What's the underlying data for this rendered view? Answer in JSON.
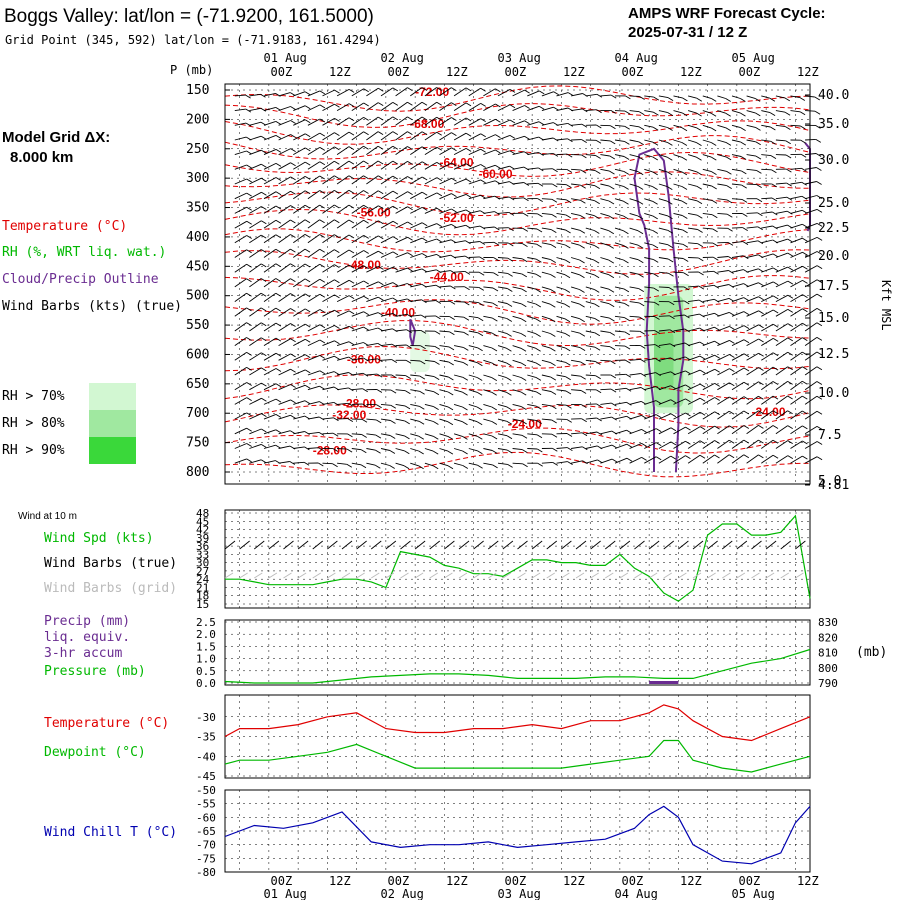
{
  "header": {
    "title": "Boggs Valley:  lat/lon = (-71.9200, 161.5000)",
    "subtitle": "Grid Point (345, 592) lat/lon = (-71.9183, 161.4294)",
    "cycle_line1": "AMPS WRF Forecast Cycle:",
    "cycle_line2": "2025-07-31 / 12  Z"
  },
  "legend": {
    "grid_label_1": "Model Grid ΔX:",
    "grid_label_2": "8.000 km",
    "temperature": "Temperature (°C)",
    "rh": "RH (%, WRT liq. wat.)",
    "cloud": "Cloud/Precip Outline",
    "wind": "Wind Barbs (kts) (true)",
    "rh70": "RH > 70%",
    "rh80": "RH > 80%",
    "rh90": "RH > 90%",
    "rh70_color": "#d2f7d2",
    "rh80_color": "#a0e8a0",
    "rh90_color": "#3ad83a"
  },
  "panel_labels": {
    "wind10": "Wind at 10 m",
    "wind_spd": "Wind Spd (kts)",
    "barbs_true": "Wind Barbs (true)",
    "barbs_grid": "Wind Barbs (grid)",
    "precip_1": "Precip (mm)",
    "precip_2": "liq. equiv.",
    "precip_3": "3-hr accum",
    "pressure": "Pressure (mb)",
    "pressure_unit": "(mb)",
    "temp": "Temperature (°C)",
    "dewpoint": "Dewpoint (°C)",
    "windchill": "Wind Chill T (°C)",
    "p_axis_label": "P (mb)",
    "kft_label": "Kft MSL"
  },
  "colors": {
    "temperature": "#e00000",
    "rh_green": "#00b800",
    "cloud": "#6a2c91",
    "wind": "#000000",
    "grid_barbs": "#bbbbbb",
    "windchill": "#0000b0",
    "precip": "#6a2c91"
  },
  "chart_data": [
    {
      "type": "line",
      "panel": "time-height cross section",
      "time_ticks": [
        "00Z",
        "12Z",
        "00Z",
        "12Z",
        "00Z",
        "12Z",
        "00Z",
        "12Z",
        "00Z",
        "12Z"
      ],
      "day_ticks": [
        "01 Aug",
        "02 Aug",
        "03 Aug",
        "04 Aug",
        "05 Aug"
      ],
      "y_ticks_mb": [
        150,
        200,
        250,
        300,
        350,
        400,
        450,
        500,
        550,
        600,
        650,
        700,
        750,
        800
      ],
      "y_right_ticks_kft": [
        "40.0",
        "35.0",
        "30.0",
        "25.0",
        "22.5",
        "20.0",
        "17.5",
        "15.0",
        "12.5",
        "10.0",
        "7.5",
        "5.0",
        "4.81"
      ],
      "y_right_kft_values": [
        40.0,
        35.0,
        30.0,
        25.0,
        22.5,
        20.0,
        17.5,
        15.0,
        12.5,
        10.0,
        7.5,
        5.0,
        4.81
      ],
      "temperature_contour_labels": [
        {
          "label": "-72.00",
          "hour": 15,
          "p": 160
        },
        {
          "label": "-68.00",
          "hour": 14,
          "p": 215
        },
        {
          "label": "-64.00",
          "hour": 20,
          "p": 280
        },
        {
          "label": "-60.00",
          "hour": 28,
          "p": 300
        },
        {
          "label": "-56.00",
          "hour": 3,
          "p": 365
        },
        {
          "label": "-52.00",
          "hour": 20,
          "p": 375
        },
        {
          "label": "-48.00",
          "hour": 1,
          "p": 455
        },
        {
          "label": "-44.00",
          "hour": 18,
          "p": 475
        },
        {
          "label": "-40.00",
          "hour": 8,
          "p": 535
        },
        {
          "label": "-36.00",
          "hour": 1,
          "p": 615
        },
        {
          "label": "-32.00",
          "hour": -2,
          "p": 710
        },
        {
          "label": "-28.00",
          "hour": 0,
          "p": 690
        },
        {
          "label": "-28.00",
          "hour": -6,
          "p": 770
        },
        {
          "label": "-24.00",
          "hour": 34,
          "p": 725
        },
        {
          "label": "-24.00",
          "hour": 84,
          "p": 705
        }
      ]
    },
    {
      "type": "line",
      "panel": "10 m wind speed",
      "y_ticks": [
        15,
        18,
        21,
        24,
        27,
        30,
        33,
        36,
        39,
        42,
        45,
        48
      ],
      "ylim": [
        15,
        48
      ],
      "series": [
        {
          "name": "Wind Spd (kts)",
          "x": [
            -24,
            -21,
            -18,
            -15,
            -12,
            -9,
            -6,
            -3,
            0,
            3,
            6,
            9,
            12,
            15,
            18,
            21,
            24,
            27,
            30,
            33,
            36,
            39,
            42,
            45,
            48,
            51,
            54,
            57,
            60,
            63,
            66,
            69,
            72,
            75,
            78,
            81,
            84,
            87,
            90,
            93,
            96
          ],
          "values": [
            24,
            24,
            23,
            22,
            22,
            22,
            22,
            23,
            24,
            24,
            23,
            21,
            34,
            33,
            32,
            29,
            28,
            26,
            26,
            25,
            28,
            31,
            31,
            30,
            30,
            29,
            29,
            33,
            28,
            25,
            19,
            16,
            20,
            40,
            44,
            44,
            40,
            40,
            41,
            47,
            17
          ]
        }
      ]
    },
    {
      "type": "line",
      "panel": "precip and pressure",
      "y_ticks_left": [
        0.0,
        0.5,
        1.0,
        1.5,
        2.0,
        2.5
      ],
      "y_ticks_right": [
        790,
        800,
        810,
        820,
        830
      ],
      "series": [
        {
          "name": "Pressure (mb)",
          "x": [
            -24,
            -18,
            -12,
            -6,
            0,
            6,
            12,
            18,
            24,
            30,
            36,
            42,
            48,
            54,
            60,
            66,
            72,
            78,
            84,
            90,
            96
          ],
          "values": [
            791,
            790,
            790,
            790,
            792,
            794,
            795,
            796,
            796,
            795,
            793,
            793,
            793,
            794,
            794,
            793,
            793,
            798,
            803,
            806,
            812
          ]
        },
        {
          "name": "Precip (mm)",
          "x": [
            63,
            69
          ],
          "values": [
            0.1,
            0.1
          ]
        }
      ]
    },
    {
      "type": "line",
      "panel": "temperature and dewpoint",
      "y_ticks": [
        -30,
        -35,
        -40,
        -45
      ],
      "ylim": [
        -45,
        -25
      ],
      "series": [
        {
          "name": "Temperature (°C)",
          "x": [
            -24,
            -21,
            -15,
            -9,
            -3,
            3,
            9,
            15,
            21,
            27,
            33,
            39,
            45,
            51,
            57,
            63,
            66,
            69,
            72,
            78,
            84,
            90,
            96
          ],
          "values": [
            -35,
            -33,
            -33,
            -32,
            -30,
            -29,
            -33,
            -34,
            -34,
            -33,
            -33,
            -32,
            -33,
            -31,
            -31,
            -29,
            -27,
            -28,
            -31,
            -35,
            -36,
            -33,
            -30
          ]
        },
        {
          "name": "Dewpoint (°C)",
          "x": [
            -24,
            -21,
            -15,
            -9,
            -3,
            3,
            9,
            15,
            21,
            27,
            33,
            39,
            45,
            51,
            57,
            63,
            66,
            69,
            72,
            78,
            84,
            90,
            96
          ],
          "values": [
            -42,
            -41,
            -41,
            -40,
            -39,
            -37,
            -40,
            -43,
            -43,
            -43,
            -43,
            -43,
            -43,
            -42,
            -41,
            -40,
            -36,
            -36,
            -41,
            -43,
            -44,
            -42,
            -40
          ]
        }
      ]
    },
    {
      "type": "line",
      "panel": "wind chill",
      "y_ticks": [
        -50,
        -55,
        -60,
        -65,
        -70,
        -75,
        -80
      ],
      "ylim": [
        -80,
        -50
      ],
      "series": [
        {
          "name": "Wind Chill T (°C)",
          "x": [
            -24,
            -18,
            -12,
            -6,
            0,
            6,
            12,
            18,
            24,
            30,
            36,
            42,
            48,
            54,
            60,
            63,
            66,
            69,
            72,
            78,
            84,
            90,
            93,
            96
          ],
          "values": [
            -67,
            -63,
            -64,
            -62,
            -58,
            -69,
            -71,
            -70,
            -70,
            -69,
            -71,
            -70,
            -69,
            -68,
            -64,
            -59,
            -56,
            -60,
            -70,
            -76,
            -77,
            -73,
            -62,
            -56
          ]
        }
      ]
    }
  ]
}
